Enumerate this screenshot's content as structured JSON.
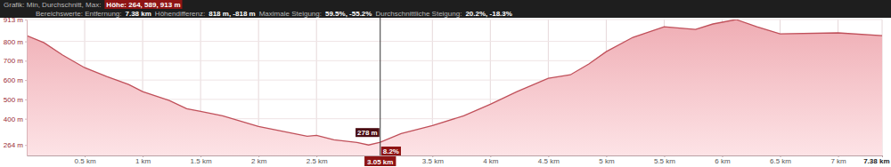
{
  "chart_data": {
    "type": "area",
    "header": [
      [
        "Grafik: Min, Durchschnitt, Max:",
        "Höhe: 264, 589, 913 m"
      ],
      [
        "Bereichswerte: Entfernung:",
        "7.38 km",
        "Höhendifferenz:",
        "818 m, -818 m",
        "Maximale Steigung:",
        "59.5%, -55.2%",
        "Durchschnittliche Steigung:",
        "20.2%, -18.3%"
      ]
    ],
    "x": [
      0,
      0.15,
      0.31,
      0.5,
      0.69,
      0.88,
      1.0,
      1.23,
      1.38,
      1.5,
      1.69,
      2.0,
      2.23,
      2.42,
      2.5,
      2.65,
      2.85,
      2.95,
      3.05,
      3.23,
      3.5,
      3.77,
      4.0,
      4.23,
      4.5,
      4.69,
      4.85,
      5.0,
      5.23,
      5.5,
      5.77,
      5.92,
      6.12,
      6.3,
      6.5,
      7.0,
      7.38
    ],
    "values": [
      830,
      793,
      729,
      664,
      618,
      577,
      540,
      494,
      452,
      438,
      415,
      360,
      332,
      309,
      314,
      291,
      277,
      264,
      278,
      323,
      365,
      415,
      475,
      540,
      609,
      627,
      683,
      747,
      821,
      876,
      862,
      890,
      913,
      876,
      839,
      844,
      830
    ],
    "color": "#c0505a",
    "xlim": [
      0,
      7.38
    ],
    "ylim": [
      210,
      913
    ],
    "xticks": [
      {
        "value": 0.5,
        "label": "0.5 km"
      },
      {
        "value": 1,
        "label": "1 km"
      },
      {
        "value": 1.5,
        "label": "1.5 km"
      },
      {
        "value": 2,
        "label": "2 km"
      },
      {
        "value": 2.5,
        "label": "2.5 km"
      },
      {
        "value": 3.5,
        "label": "3.5 km"
      },
      {
        "value": 4,
        "label": "4 km"
      },
      {
        "value": 4.5,
        "label": "4.5 km"
      },
      {
        "value": 5,
        "label": "5 km"
      },
      {
        "value": 5.5,
        "label": "5.5 km"
      },
      {
        "value": 6,
        "label": "6 km"
      },
      {
        "value": 6.5,
        "label": "6.5 km"
      },
      {
        "value": 7,
        "label": "7 km"
      },
      {
        "value": 7.38,
        "label": "7.38 km"
      }
    ],
    "yticks": [
      {
        "value": 264,
        "label": "264 m"
      },
      {
        "value": 400,
        "label": "400 m"
      },
      {
        "value": 500,
        "label": "500 m"
      },
      {
        "value": 600,
        "label": "600 m"
      },
      {
        "value": 700,
        "label": "700 m"
      },
      {
        "value": 800,
        "label": "800 m"
      },
      {
        "value": 913,
        "label": "913 m"
      }
    ],
    "grid": true,
    "cursor": {
      "x": {
        "value": 3.05,
        "label": "3.05 km"
      },
      "y": {
        "value": 278,
        "label": "278 m"
      },
      "grade": "8.2%"
    }
  }
}
